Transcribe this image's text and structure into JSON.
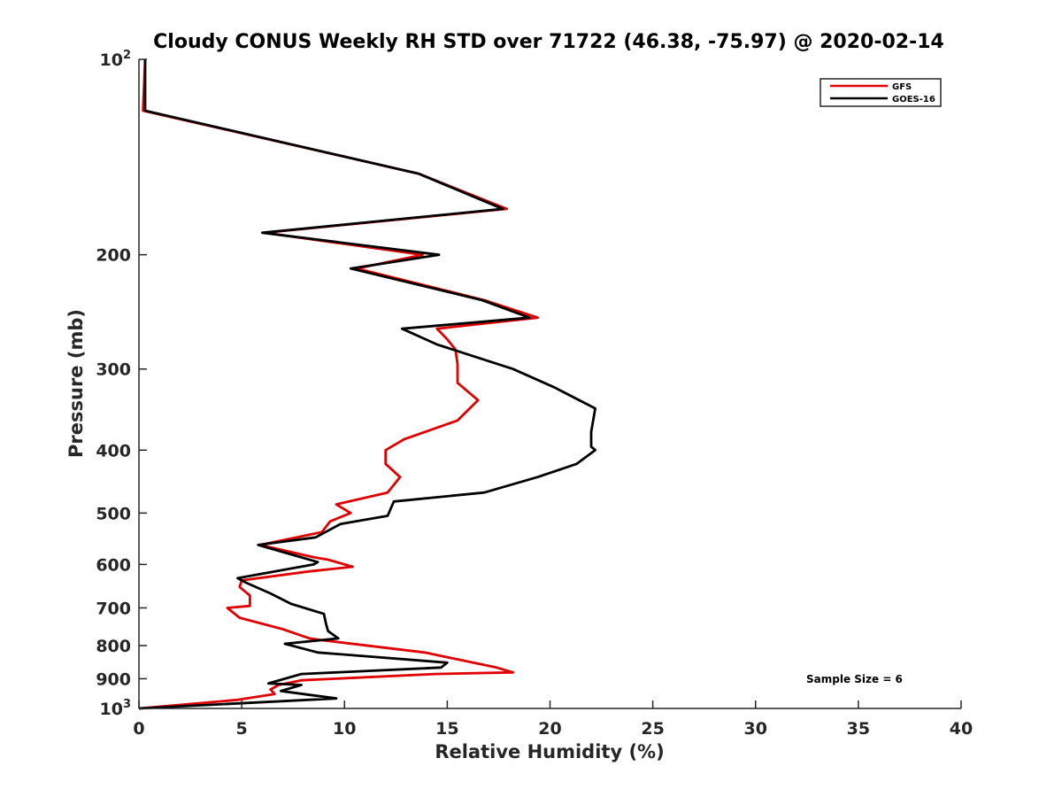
{
  "chart_data": {
    "type": "line",
    "title": "Cloudy CONUS Weekly RH STD over 71722 (46.38, -75.97) @ 2020-02-14",
    "xlabel": "Relative Humidity (%)",
    "ylabel": "Pressure (mb)",
    "xlim": [
      0,
      40
    ],
    "ylim": [
      100,
      1000
    ],
    "yscale": "log",
    "y_reversed": true,
    "grid": false,
    "xticks": [
      "0",
      "5",
      "10",
      "15",
      "20",
      "25",
      "30",
      "35",
      "40"
    ],
    "xtick_values": [
      0,
      5,
      10,
      15,
      20,
      25,
      30,
      35,
      40
    ],
    "yticks": [
      {
        "value": 100,
        "base": "10",
        "exp": "2"
      },
      {
        "value": 200,
        "label": "200"
      },
      {
        "value": 300,
        "label": "300"
      },
      {
        "value": 400,
        "label": "400"
      },
      {
        "value": 500,
        "label": "500"
      },
      {
        "value": 600,
        "label": "600"
      },
      {
        "value": 700,
        "label": "700"
      },
      {
        "value": 800,
        "label": "800"
      },
      {
        "value": 900,
        "label": "900"
      },
      {
        "value": 1000,
        "base": "10",
        "exp": "3"
      }
    ],
    "legend_position": "top-right",
    "annotation": "Sample Size = 6",
    "series": [
      {
        "name": "GFS",
        "color": "#e00000",
        "x": [
          0.3,
          0.2,
          13.6,
          17.9,
          6.1,
          13.8,
          10.6,
          16.8,
          19.4,
          14.5,
          15.0,
          15.4,
          15.5,
          15.5,
          16.5,
          15.5,
          12.9,
          12.0,
          12.0,
          12.7,
          12.1,
          9.6,
          10.3,
          9.3,
          8.9,
          5.9,
          8.5,
          9.2,
          10.4,
          8.3,
          5.0,
          4.9,
          5.4,
          5.4,
          4.3,
          4.9,
          7.0,
          8.3,
          8.9,
          13.9,
          17.4,
          18.2,
          14.4,
          7.9,
          6.8,
          6.4,
          6.6,
          4.8,
          0.0
        ],
        "y": [
          100,
          120,
          150,
          170,
          185,
          200,
          210,
          235,
          250,
          260,
          270,
          280,
          295,
          315,
          335,
          360,
          385,
          400,
          420,
          440,
          465,
          485,
          500,
          515,
          535,
          560,
          585,
          590,
          605,
          615,
          635,
          650,
          670,
          695,
          700,
          725,
          755,
          780,
          785,
          820,
          865,
          880,
          885,
          905,
          920,
          935,
          950,
          970,
          1000
        ]
      },
      {
        "name": "GOES-16",
        "color": "#000000",
        "x": [
          0.3,
          0.3,
          13.6,
          17.7,
          6.0,
          14.6,
          10.3,
          16.7,
          19.0,
          12.8,
          14.5,
          18.2,
          20.2,
          22.2,
          22.0,
          22.0,
          22.2,
          21.3,
          19.4,
          16.8,
          12.4,
          12.1,
          9.8,
          8.6,
          5.8,
          8.7,
          8.5,
          4.8,
          5.2,
          6.4,
          7.4,
          9.0,
          9.1,
          9.2,
          9.7,
          7.1,
          8.7,
          15.0,
          14.7,
          7.9,
          6.3,
          7.9,
          6.9,
          9.6,
          0.0
        ],
        "y": [
          100,
          120,
          150,
          170,
          185,
          200,
          210,
          235,
          250,
          260,
          275,
          300,
          320,
          345,
          375,
          395,
          400,
          420,
          440,
          465,
          480,
          505,
          520,
          545,
          560,
          595,
          600,
          630,
          640,
          665,
          690,
          715,
          740,
          760,
          780,
          795,
          820,
          850,
          865,
          885,
          915,
          920,
          940,
          965,
          1000
        ]
      }
    ]
  }
}
